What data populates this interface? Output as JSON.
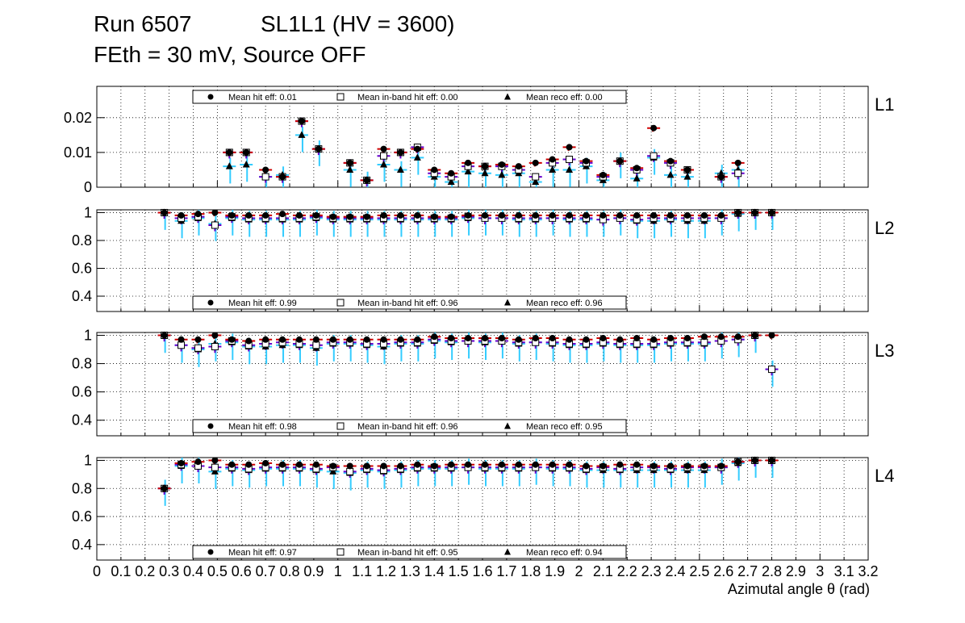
{
  "header": {
    "title_line1": "Run 6507           SL1L1 (HV = 3600)",
    "title_line2": "FEth = 30 mV, Source OFF"
  },
  "x_axis_label": "Azimutal angle θ (rad)",
  "x_tick_labels": [
    "0",
    "0.1",
    "0.2",
    "0.3",
    "0.4",
    "0.5",
    "0.6",
    "0.7",
    "0.8",
    "0.9",
    "1",
    "1.1",
    "1.2",
    "1.3",
    "1.4",
    "1.5",
    "1.6",
    "1.7",
    "1.8",
    "1.9",
    "2",
    "2.1",
    "2.2",
    "2.3",
    "2.4",
    "2.5",
    "2.6",
    "2.7",
    "2.8",
    "2.9",
    "3",
    "3.1",
    "3.2"
  ],
  "colors": {
    "hit": "#cc0000",
    "inband": "#6600cc",
    "reco": "#33ccff",
    "marker": "#000000",
    "grid": "#000000"
  },
  "chart_data": [
    {
      "type": "scatter",
      "panel": "L1",
      "xlim": [
        0,
        3.2
      ],
      "ylim": [
        0,
        0.029
      ],
      "y_ticks": [
        0,
        0.01,
        0.02
      ],
      "y_tick_labels": [
        "0",
        "0.01",
        "0.02"
      ],
      "x": [
        0.55,
        0.62,
        0.7,
        0.77,
        0.85,
        0.92,
        1.05,
        1.12,
        1.19,
        1.26,
        1.33,
        1.4,
        1.47,
        1.54,
        1.61,
        1.68,
        1.75,
        1.82,
        1.89,
        1.96,
        2.03,
        2.1,
        2.17,
        2.24,
        2.31,
        2.38,
        2.45,
        2.59,
        2.66
      ],
      "series": [
        {
          "name": "Mean hit  eff: 0.01",
          "marker": "circle",
          "values": [
            0.01,
            0.01,
            0.005,
            0.003,
            0.019,
            0.011,
            0.007,
            0.002,
            0.011,
            0.01,
            0.011,
            0.005,
            0.004,
            0.007,
            0.006,
            0.0065,
            0.006,
            0.007,
            0.008,
            0.0115,
            0.0075,
            0.0035,
            0.0075,
            0.0055,
            0.017,
            0.0075,
            0.005,
            0.003,
            0.007
          ]
        },
        {
          "name": "Mean in-band hit eff: 0.00",
          "marker": "square",
          "values": [
            0.01,
            0.01,
            0.003,
            0.003,
            0.019,
            0.011,
            0.007,
            0.002,
            0.009,
            0.01,
            0.0115,
            0.004,
            0.003,
            0.006,
            0.006,
            0.006,
            0.005,
            0.003,
            0.007,
            0.008,
            0.007,
            0.003,
            0.0075,
            0.005,
            0.009,
            0.007,
            0.005,
            0.003,
            0.004
          ]
        },
        {
          "name": "Mean reco eff: 0.00",
          "marker": "triangle",
          "values": [
            0.006,
            0.0065,
            0.003,
            0.0035,
            0.015,
            0.011,
            0.005,
            0.002,
            0.0065,
            0.005,
            0.0085,
            0.003,
            0.0015,
            0.0045,
            0.004,
            0.0035,
            0.004,
            0.0015,
            0.005,
            0.005,
            0.006,
            0.002,
            0.0075,
            0.0025,
            0.0085,
            0.0035,
            0.003,
            0.004,
            0.005
          ]
        }
      ]
    },
    {
      "type": "scatter",
      "panel": "L2",
      "xlim": [
        0,
        3.2
      ],
      "ylim": [
        0.29,
        1.02
      ],
      "y_ticks": [
        0.4,
        0.6,
        0.8,
        1
      ],
      "y_tick_labels": [
        "0.4",
        "0.6",
        "0.8",
        "1"
      ],
      "x": [
        0.28,
        0.35,
        0.42,
        0.49,
        0.56,
        0.63,
        0.7,
        0.77,
        0.84,
        0.91,
        0.98,
        1.05,
        1.12,
        1.19,
        1.26,
        1.33,
        1.4,
        1.47,
        1.54,
        1.61,
        1.68,
        1.75,
        1.82,
        1.89,
        1.96,
        2.03,
        2.1,
        2.17,
        2.24,
        2.31,
        2.38,
        2.45,
        2.52,
        2.59,
        2.66,
        2.73,
        2.8
      ],
      "series": [
        {
          "name": "Mean hit  eff: 0.99",
          "marker": "circle",
          "values": [
            1.0,
            0.98,
            0.99,
            1.0,
            0.98,
            0.98,
            0.98,
            0.99,
            0.98,
            0.98,
            0.97,
            0.97,
            0.97,
            0.98,
            0.98,
            0.98,
            0.97,
            0.97,
            0.98,
            0.98,
            0.98,
            0.98,
            0.98,
            0.98,
            0.98,
            0.98,
            0.98,
            0.98,
            0.98,
            0.98,
            0.98,
            0.98,
            0.98,
            0.98,
            1.0,
            1.0,
            1.0
          ]
        },
        {
          "name": "Mean in-band hit eff: 0.96",
          "marker": "square",
          "values": [
            1.0,
            0.96,
            0.97,
            0.91,
            0.97,
            0.96,
            0.96,
            0.96,
            0.96,
            0.97,
            0.96,
            0.96,
            0.96,
            0.96,
            0.96,
            0.96,
            0.96,
            0.96,
            0.97,
            0.96,
            0.96,
            0.96,
            0.96,
            0.96,
            0.96,
            0.96,
            0.95,
            0.96,
            0.95,
            0.96,
            0.96,
            0.96,
            0.96,
            0.96,
            1.0,
            1.0,
            1.0
          ]
        },
        {
          "name": "Mean reco eff: 0.96",
          "marker": "triangle",
          "values": [
            1.0,
            0.94,
            0.96,
            0.92,
            0.96,
            0.95,
            0.95,
            0.95,
            0.95,
            0.96,
            0.95,
            0.95,
            0.95,
            0.95,
            0.95,
            0.95,
            0.95,
            0.95,
            0.96,
            0.96,
            0.96,
            0.95,
            0.95,
            0.96,
            0.95,
            0.95,
            0.95,
            0.96,
            0.94,
            0.94,
            0.95,
            0.94,
            0.94,
            0.96,
            0.99,
            1.0,
            1.0
          ]
        }
      ]
    },
    {
      "type": "scatter",
      "panel": "L3",
      "xlim": [
        0,
        3.2
      ],
      "ylim": [
        0.29,
        1.02
      ],
      "y_ticks": [
        0.4,
        0.6,
        0.8,
        1
      ],
      "y_tick_labels": [
        "0.4",
        "0.6",
        "0.8",
        "1"
      ],
      "x": [
        0.28,
        0.35,
        0.42,
        0.49,
        0.56,
        0.63,
        0.7,
        0.77,
        0.84,
        0.91,
        0.98,
        1.05,
        1.12,
        1.19,
        1.26,
        1.33,
        1.4,
        1.47,
        1.54,
        1.61,
        1.68,
        1.75,
        1.82,
        1.89,
        1.96,
        2.03,
        2.1,
        2.17,
        2.24,
        2.31,
        2.38,
        2.45,
        2.52,
        2.59,
        2.66,
        2.73,
        2.8
      ],
      "series": [
        {
          "name": "Mean hit  eff: 0.98",
          "marker": "circle",
          "values": [
            1.0,
            0.97,
            0.97,
            1.0,
            0.97,
            0.96,
            0.97,
            0.97,
            0.97,
            0.97,
            0.97,
            0.97,
            0.97,
            0.97,
            0.97,
            0.97,
            0.99,
            0.98,
            0.98,
            0.98,
            0.98,
            0.97,
            0.98,
            0.98,
            0.97,
            0.97,
            0.98,
            0.97,
            0.98,
            0.97,
            0.98,
            0.98,
            0.99,
            0.99,
            0.99,
            1.0,
            1.0
          ]
        },
        {
          "name": "Mean in-band hit eff: 0.96",
          "marker": "square",
          "values": [
            1.0,
            0.93,
            0.91,
            0.92,
            0.96,
            0.93,
            0.94,
            0.95,
            0.94,
            0.93,
            0.95,
            0.95,
            0.94,
            0.94,
            0.95,
            0.95,
            0.97,
            0.96,
            0.96,
            0.96,
            0.96,
            0.95,
            0.95,
            0.95,
            0.94,
            0.94,
            0.95,
            0.94,
            0.94,
            0.94,
            0.95,
            0.95,
            0.95,
            0.96,
            0.97,
            1.0,
            0.76
          ]
        },
        {
          "name": "Mean reco eff: 0.95",
          "marker": "triangle",
          "values": [
            1.0,
            0.93,
            0.9,
            0.94,
            0.95,
            0.92,
            0.92,
            0.93,
            0.93,
            0.91,
            0.94,
            0.94,
            0.93,
            0.92,
            0.94,
            0.94,
            0.96,
            0.95,
            0.96,
            0.95,
            0.96,
            0.94,
            0.95,
            0.94,
            0.93,
            0.93,
            0.94,
            0.93,
            0.93,
            0.93,
            0.94,
            0.94,
            0.94,
            0.96,
            0.97,
            1.0,
            0.76
          ]
        }
      ]
    },
    {
      "type": "scatter",
      "panel": "L4",
      "xlim": [
        0,
        3.2
      ],
      "ylim": [
        0.29,
        1.02
      ],
      "y_ticks": [
        0.4,
        0.6,
        0.8,
        1
      ],
      "y_tick_labels": [
        "0.4",
        "0.6",
        "0.8",
        "1"
      ],
      "x": [
        0.28,
        0.35,
        0.42,
        0.49,
        0.56,
        0.63,
        0.7,
        0.77,
        0.84,
        0.91,
        0.98,
        1.05,
        1.12,
        1.19,
        1.26,
        1.33,
        1.4,
        1.47,
        1.54,
        1.61,
        1.68,
        1.75,
        1.82,
        1.89,
        1.96,
        2.03,
        2.1,
        2.17,
        2.24,
        2.31,
        2.38,
        2.45,
        2.52,
        2.59,
        2.66,
        2.73,
        2.8
      ],
      "series": [
        {
          "name": "Mean hit  eff: 0.97",
          "marker": "circle",
          "values": [
            0.8,
            0.98,
            0.99,
            1.0,
            0.97,
            0.97,
            0.98,
            0.97,
            0.97,
            0.97,
            0.96,
            0.96,
            0.96,
            0.96,
            0.96,
            0.97,
            0.96,
            0.97,
            0.97,
            0.97,
            0.97,
            0.97,
            0.97,
            0.97,
            0.97,
            0.96,
            0.96,
            0.97,
            0.97,
            0.96,
            0.96,
            0.96,
            0.96,
            0.96,
            0.99,
            1.0,
            1.0
          ]
        },
        {
          "name": "Mean in-band hit eff: 0.95",
          "marker": "square",
          "values": [
            0.8,
            0.97,
            0.96,
            0.95,
            0.95,
            0.94,
            0.95,
            0.95,
            0.95,
            0.94,
            0.95,
            0.92,
            0.94,
            0.93,
            0.94,
            0.95,
            0.95,
            0.95,
            0.95,
            0.95,
            0.95,
            0.95,
            0.95,
            0.95,
            0.95,
            0.94,
            0.95,
            0.94,
            0.95,
            0.95,
            0.94,
            0.95,
            0.95,
            0.95,
            0.99,
            1.0,
            1.0
          ]
        },
        {
          "name": "Mean reco eff: 0.94",
          "marker": "triangle",
          "values": [
            0.8,
            0.96,
            0.96,
            0.92,
            0.94,
            0.93,
            0.94,
            0.94,
            0.94,
            0.93,
            0.92,
            0.91,
            0.93,
            0.92,
            0.93,
            0.94,
            0.94,
            0.94,
            0.95,
            0.94,
            0.94,
            0.94,
            0.95,
            0.94,
            0.94,
            0.93,
            0.93,
            0.93,
            0.93,
            0.93,
            0.93,
            0.93,
            0.93,
            0.95,
            0.98,
            1.0,
            1.0
          ]
        }
      ]
    }
  ]
}
